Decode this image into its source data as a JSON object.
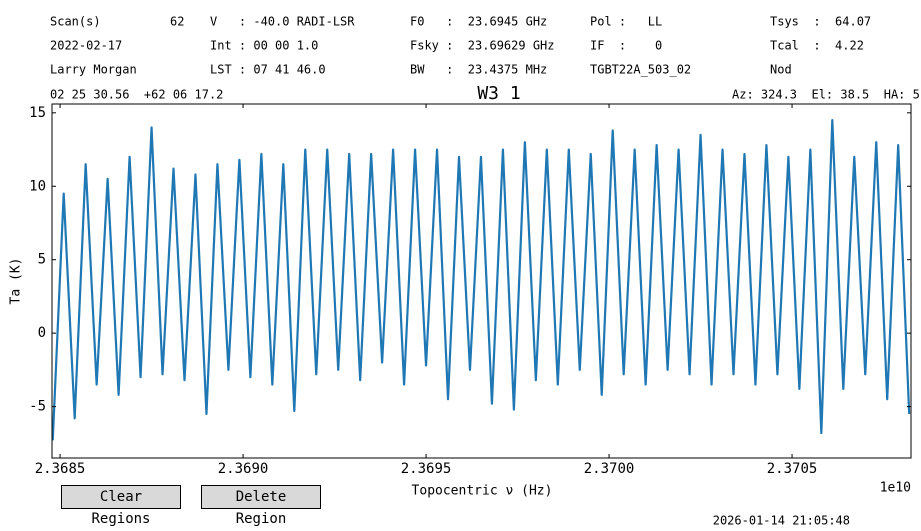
{
  "chart_data": {
    "type": "line",
    "title": "W3 1",
    "header": [
      [
        "Scan(s)",
        "62",
        "V   : -40.0 RADI-LSR",
        "F0   :  23.6945 GHz",
        "Pol :   LL",
        "Tsys  :  64.07"
      ],
      [
        "2022-02-17",
        "Int : 00 00 1.0",
        "Fsky :  23.69629 GHz",
        "IF  :    0",
        "Tcal  :  4.22"
      ],
      [
        "Larry Morgan",
        "LST : 07 41 46.0",
        "BW   :  23.4375 MHz",
        "TGBT22A_503_02",
        "Nod"
      ]
    ],
    "coordinates": "02 25 30.56  +62 06 17.2",
    "pointing": "Az: 324.3  El: 38.5  HA: 5",
    "xlabel": "Topocentric ν (Hz)",
    "ylabel": "Ta (K)",
    "x_offset": "1e10",
    "color": "#1f77b4",
    "x": [
      2.36848,
      2.36851,
      2.36854,
      2.36857,
      2.3686,
      2.36863,
      2.36866,
      2.36869,
      2.36872,
      2.36875,
      2.36878,
      2.36881,
      2.36884,
      2.36887,
      2.3689,
      2.36893,
      2.36896,
      2.36899,
      2.36902,
      2.36905,
      2.36908,
      2.36911,
      2.36914,
      2.36917,
      2.3692,
      2.36923,
      2.36926,
      2.36929,
      2.36932,
      2.36935,
      2.36938,
      2.36941,
      2.36944,
      2.36947,
      2.3695,
      2.36953,
      2.36956,
      2.36959,
      2.36962,
      2.36965,
      2.36968,
      2.36971,
      2.36974,
      2.36977,
      2.3698,
      2.36983,
      2.36986,
      2.36989,
      2.36992,
      2.36995,
      2.36998,
      2.37001,
      2.37004,
      2.37007,
      2.3701,
      2.37013,
      2.37016,
      2.37019,
      2.37022,
      2.37025,
      2.37028,
      2.37031,
      2.37034,
      2.37037,
      2.3704,
      2.37043,
      2.37046,
      2.37049,
      2.37052,
      2.37055,
      2.37058,
      2.37061,
      2.37064,
      2.37067,
      2.3707,
      2.37073,
      2.37076,
      2.37079,
      2.37082
    ],
    "values": [
      -7.3,
      9.5,
      -5.8,
      11.5,
      -3.5,
      10.5,
      -4.2,
      12,
      -3,
      14,
      -2.8,
      11.2,
      -3.2,
      10.8,
      -5.5,
      11.5,
      -2.5,
      11.8,
      -3,
      12.2,
      -3.5,
      11.5,
      -5.3,
      12.5,
      -2.8,
      12.5,
      -2.5,
      12.2,
      -3.2,
      12.2,
      -2,
      12.5,
      -3.5,
      12.5,
      -2.2,
      12.5,
      -4.5,
      12,
      -2.5,
      12,
      -4.8,
      12.5,
      -5.2,
      13,
      -3.2,
      12.5,
      -3.5,
      12.5,
      -2.5,
      12.2,
      -4.2,
      13.8,
      -2.8,
      12.5,
      -3.5,
      12.8,
      -2.5,
      12.5,
      -2.8,
      13.5,
      -3.5,
      12.5,
      -2.8,
      12.2,
      -3.5,
      12.8,
      -2.8,
      12,
      -3.8,
      12.5,
      -6.8,
      14.5,
      -3.8,
      12,
      -2.8,
      13,
      -4.5,
      12.8,
      -5.5
    ],
    "xlim": [
      2.368478,
      2.370825
    ],
    "xticks": [
      {
        "value": 2.3685,
        "label": "2.3685"
      },
      {
        "value": 2.369,
        "label": "2.3690"
      },
      {
        "value": 2.3695,
        "label": "2.3695"
      },
      {
        "value": 2.37,
        "label": "2.3700"
      },
      {
        "value": 2.3705,
        "label": "2.3705"
      }
    ],
    "ylim": [
      -8.5,
      15.6
    ],
    "yticks": [
      -5,
      0,
      5,
      10,
      15
    ]
  },
  "buttons": [
    "Clear Regions",
    "Delete Region"
  ],
  "timestamp": "2026-01-14 21:05:48"
}
